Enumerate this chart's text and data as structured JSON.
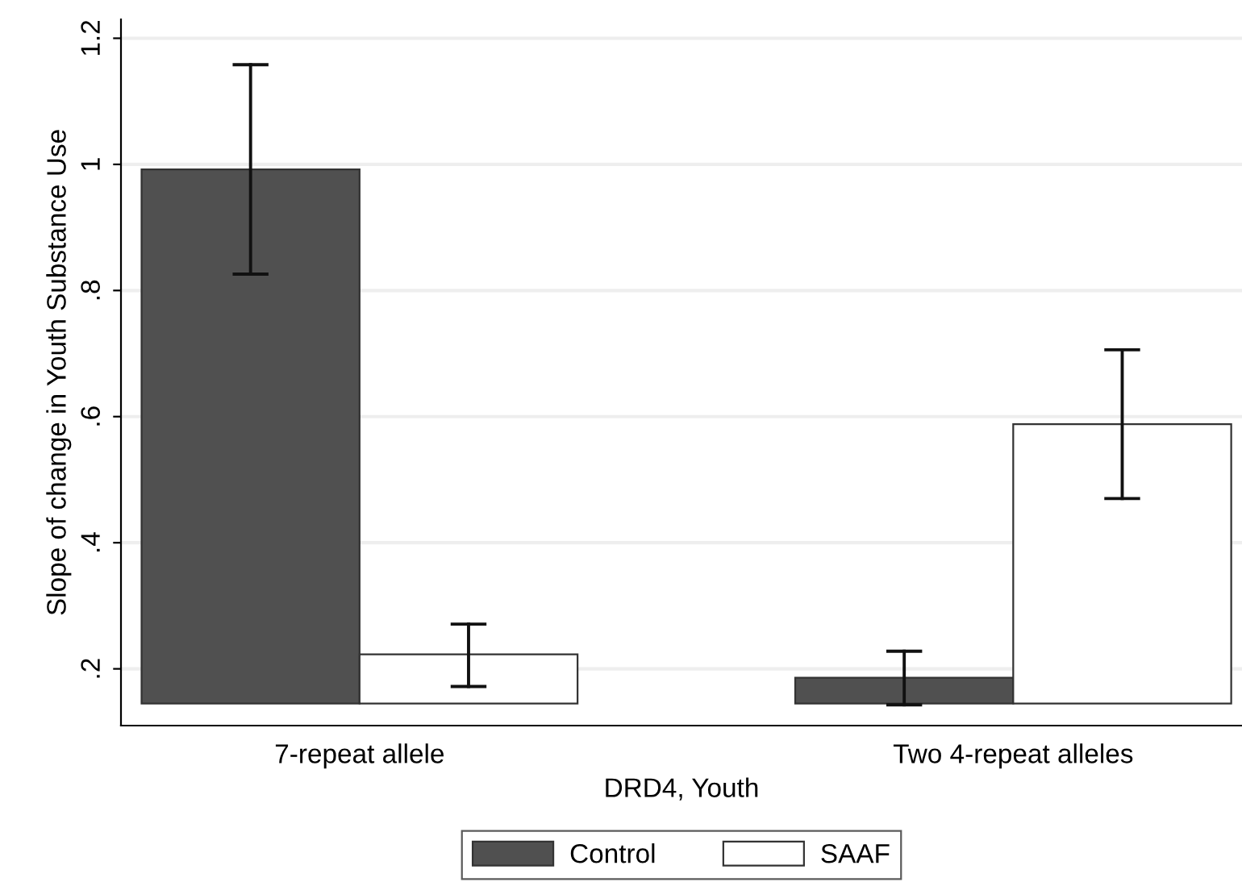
{
  "chart_data": {
    "type": "bar",
    "xlabel": "DRD4, Youth",
    "ylabel": "Slope of change in Youth Substance Use",
    "categories": [
      "7-repeat allele",
      "Two 4-repeat alleles"
    ],
    "series": [
      {
        "name": "Control",
        "color": "#505050",
        "base": [
          0.145,
          0.145
        ],
        "values": [
          0.847,
          0.041
        ],
        "errors": [
          [
            0.826,
            1.158
          ],
          [
            0.143,
            0.228
          ]
        ]
      },
      {
        "name": "SAAF",
        "color": "#ffffff",
        "base": [
          0.145,
          0.145
        ],
        "values": [
          0.078,
          0.443
        ],
        "errors": [
          [
            0.172,
            0.271
          ],
          [
            0.47,
            0.706
          ]
        ]
      }
    ],
    "ylim": [
      0.11,
      1.23
    ],
    "yticks": [
      {
        "value": 0.2,
        "label": ".2"
      },
      {
        "value": 0.4,
        "label": ".4"
      },
      {
        "value": 0.6,
        "label": ".6"
      },
      {
        "value": 0.8,
        "label": ".8"
      },
      {
        "value": 1,
        "label": "1"
      },
      {
        "value": 1.2,
        "label": "1.2"
      }
    ],
    "grid": "y",
    "legend": "bottom"
  }
}
